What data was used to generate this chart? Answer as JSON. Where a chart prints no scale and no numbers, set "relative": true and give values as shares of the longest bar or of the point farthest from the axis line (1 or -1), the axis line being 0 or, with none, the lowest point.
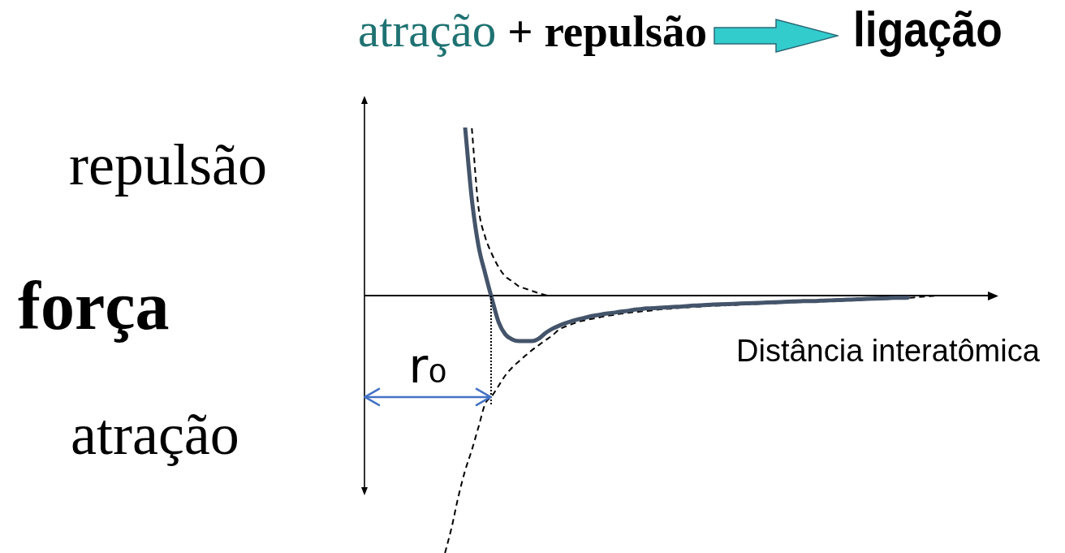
{
  "chart_data": {
    "type": "line",
    "title": "atração + repulsão ligação",
    "xlabel": "Distância interatômica",
    "ylabel": "força",
    "annotations": [
      "repulsão",
      "atração",
      "r₀"
    ],
    "relative": true,
    "marker": "none",
    "categories": [
      null,
      null,
      null,
      null,
      null,
      null,
      null,
      null,
      null,
      null,
      null,
      null,
      null,
      null,
      null,
      null,
      null,
      null,
      null,
      null,
      null,
      null,
      null,
      null,
      null,
      null,
      null,
      null,
      null,
      null,
      null,
      null,
      null,
      null,
      null,
      null,
      null,
      null,
      null,
      null,
      null,
      null,
      null,
      null,
      null,
      null,
      null,
      null,
      null,
      null,
      null,
      null,
      null,
      null,
      null,
      null,
      null,
      null,
      null,
      null,
      null,
      null,
      null,
      null,
      null,
      null,
      null,
      null,
      null,
      null,
      null,
      null,
      null,
      null,
      null,
      null,
      null,
      null,
      null,
      null,
      null,
      null,
      null,
      null,
      null,
      null,
      null,
      null,
      null,
      null,
      null,
      null,
      null,
      null,
      null
    ],
    "series": [
      {
        "color": "#000000",
        "line_style": "dashed",
        "values": [
          null,
          null,
          null,
          null,
          null,
          null,
          null,
          null,
          null,
          null,
          null,
          null,
          null,
          null,
          null,
          null,
          0.65,
          0.341,
          0.227,
          0.161,
          0.11,
          0.074,
          0.056,
          0.036,
          0.027,
          0.018,
          0.009,
          0.002,
          0,
          null,
          null,
          null,
          null,
          null,
          null,
          null,
          null,
          null,
          null,
          null,
          null,
          null,
          null,
          null,
          null,
          null,
          null,
          null,
          null,
          null,
          null,
          null,
          null,
          null,
          null,
          null,
          null,
          null,
          null,
          null,
          null,
          null,
          null,
          null,
          null,
          null,
          null,
          null,
          null,
          null,
          null,
          null,
          null,
          null,
          null,
          null,
          null,
          null,
          null,
          null,
          null,
          null,
          null,
          null,
          null,
          null,
          null,
          null,
          null,
          null,
          null,
          null,
          null,
          null,
          null
        ]
      },
      {
        "color": "#000000",
        "line_style": "dashed",
        "values": [
          null,
          null,
          null,
          null,
          null,
          null,
          null,
          null,
          null,
          null,
          null,
          null,
          -1,
          -0.9,
          -0.78,
          -0.68,
          -0.6,
          -0.51,
          -0.42,
          -0.39,
          -0.35,
          -0.31,
          -0.28,
          -0.256,
          -0.233,
          -0.211,
          -0.192,
          -0.173,
          -0.155,
          -0.132,
          -0.12,
          -0.11,
          -0.101,
          -0.095,
          -0.09,
          -0.085,
          -0.079,
          -0.076,
          -0.071,
          -0.068,
          -0.065,
          -0.062,
          -0.06,
          -0.057,
          -0.054,
          -0.052,
          -0.05,
          -0.047,
          -0.046,
          -0.044,
          -0.043,
          -0.041,
          -0.04,
          -0.039,
          -0.038,
          -0.037,
          -0.035,
          -0.034,
          -0.033,
          -0.032,
          -0.031,
          -0.03,
          -0.028,
          -0.027,
          -0.026,
          -0.025,
          -0.024,
          -0.023,
          -0.021,
          -0.021,
          -0.02,
          -0.019,
          -0.018,
          -0.017,
          -0.016,
          -0.015,
          -0.014,
          -0.013,
          -0.012,
          -0.011,
          -0.01,
          -0.009,
          -0.007,
          -0.005,
          -0.003,
          -0.001,
          0,
          null,
          null,
          null,
          null,
          null,
          null,
          null,
          null
        ]
      },
      {
        "color": "#44546a",
        "line_style": "solid",
        "values": [
          null,
          null,
          null,
          null,
          null,
          null,
          null,
          null,
          null,
          null,
          null,
          null,
          null,
          null,
          null,
          0.653,
          0.375,
          0.192,
          0.085,
          -0.013,
          -0.104,
          -0.151,
          -0.17,
          -0.177,
          -0.177,
          -0.177,
          -0.167,
          -0.145,
          -0.129,
          -0.117,
          -0.107,
          -0.098,
          -0.091,
          -0.085,
          -0.079,
          -0.075,
          -0.07,
          -0.067,
          -0.063,
          -0.06,
          -0.056,
          -0.053,
          -0.05,
          -0.049,
          -0.047,
          -0.046,
          -0.044,
          -0.043,
          -0.041,
          -0.039,
          -0.038,
          -0.036,
          -0.035,
          -0.034,
          -0.033,
          -0.032,
          -0.031,
          -0.03,
          -0.029,
          -0.028,
          -0.027,
          -0.026,
          -0.025,
          -0.024,
          -0.023,
          -0.022,
          -0.021,
          -0.021,
          -0.02,
          -0.019,
          -0.018,
          -0.017,
          -0.016,
          -0.015,
          -0.014,
          -0.013,
          -0.012,
          -0.011,
          -0.01,
          -0.009,
          -0.009,
          -0.008,
          null,
          null,
          null,
          null,
          null,
          null,
          null,
          null,
          null,
          null,
          null,
          null,
          null
        ]
      }
    ]
  }
}
